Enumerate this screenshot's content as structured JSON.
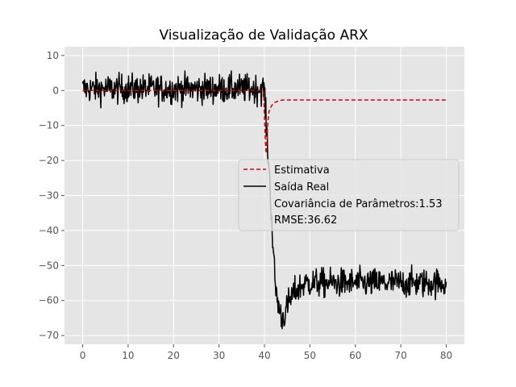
{
  "chart_data": {
    "type": "line",
    "title": "Visualização de Validação ARX",
    "xlabel": "",
    "ylabel": "",
    "xlim": [
      -4,
      84
    ],
    "ylim": [
      -72.5,
      12.5
    ],
    "xticks": [
      0,
      10,
      20,
      30,
      40,
      50,
      60,
      70,
      80
    ],
    "yticks": [
      10,
      0,
      -10,
      -20,
      -30,
      -40,
      -50,
      -60,
      -70
    ],
    "grid": true,
    "legend_placement": "center-right",
    "series": [
      {
        "name": "Estimativa",
        "color": "#e00000",
        "style": "dashed",
        "points": [
          [
            0,
            0
          ],
          [
            39.8,
            0
          ],
          [
            40.0,
            -7
          ],
          [
            40.2,
            -15
          ],
          [
            40.4,
            -18
          ],
          [
            40.7,
            -10
          ],
          [
            41.0,
            -6
          ],
          [
            41.5,
            -4.5
          ],
          [
            42.0,
            -3.6
          ],
          [
            43.0,
            -3.0
          ],
          [
            44.0,
            -2.7
          ],
          [
            50,
            -2.7
          ],
          [
            80,
            -2.7
          ]
        ]
      },
      {
        "name": "Saída Real",
        "color": "#000000",
        "style": "solid",
        "noisy": true,
        "points": [
          [
            0,
            0.5
          ],
          [
            40,
            0.5
          ],
          [
            40.4,
            -10
          ],
          [
            41,
            -22
          ],
          [
            41.5,
            -34
          ],
          [
            42,
            -48
          ],
          [
            42.5,
            -57
          ],
          [
            43.2,
            -62
          ],
          [
            43.8,
            -65
          ],
          [
            44.5,
            -64
          ],
          [
            45.5,
            -60
          ],
          [
            47,
            -57
          ],
          [
            49,
            -55
          ],
          [
            80,
            -55
          ]
        ]
      }
    ],
    "legend": {
      "entries": [
        "Estimativa",
        "Saída Real"
      ],
      "extra": [
        "Covariância de Parâmetros:1.53",
        "RMSE:36.62"
      ]
    }
  }
}
